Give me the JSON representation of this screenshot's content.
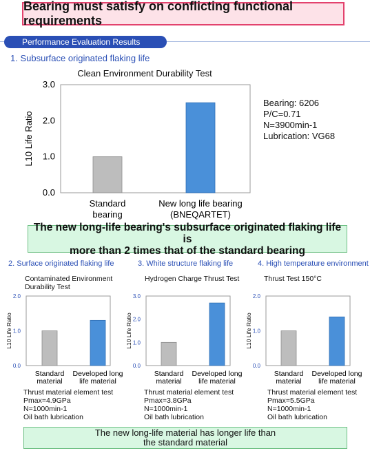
{
  "header": {
    "banner": "Bearing must satisfy on conflicting functional requirements",
    "section_pill": "Performance Evaluation Results"
  },
  "section1": {
    "heading": "1. Subsurface originated flaking life",
    "specs": [
      "Bearing: 6206",
      "P/C=0.71",
      "N=3900min-1",
      "Lubrication: VG68"
    ],
    "callout": [
      "The new long-life bearing's subsurface originated flaking life is",
      "more than 2 times that of the standard bearing"
    ]
  },
  "subsections": [
    {
      "heading": "2. Surface originated flaking life",
      "title": [
        "Contaminated Environment",
        "Durability Test"
      ],
      "notes": [
        "Thrust material element test",
        "Pmax=4.9GPa",
        "N=1000min-1",
        "Oil bath lubrication"
      ]
    },
    {
      "heading": "3. White structure flaking life",
      "title": [
        "Hydrogen Charge Thrust Test"
      ],
      "notes": [
        "Thrust material element test",
        "Pmax=3.8GPa",
        "N=1000min-1",
        "Oil bath lubrication"
      ]
    },
    {
      "heading": "4. High temperature environment fl",
      "title": [
        "Thrust Test 150°C"
      ],
      "notes": [
        "Thrust material element test",
        "Pmax=5.5GPa",
        "N=1000min-1",
        "Oil bath lubrication"
      ]
    }
  ],
  "footer_callout": [
    "The new long-life material has longer life than",
    "the standard material"
  ],
  "colors": {
    "standard_bar": "#bdbdbd",
    "new_bar": "#4a90d9",
    "banner_border": "#e3426d",
    "pill": "#2a4fb5",
    "callout_bg": "#d8f7e2"
  },
  "chart_data": [
    {
      "type": "bar",
      "title": "Clean Environment Durability Test",
      "ylabel": "L10 Life Ratio",
      "categories": [
        [
          "Standard",
          "bearing"
        ],
        [
          "New long life bearing",
          "(BNEQARTET)"
        ]
      ],
      "values": [
        1.0,
        2.5
      ],
      "ylim": [
        0,
        3
      ],
      "yticks": [
        "0.0",
        "1.0",
        "2.0",
        "3.0"
      ]
    },
    {
      "type": "bar",
      "title": "Contaminated Environment Durability Test",
      "ylabel": "L10 Life Ratio",
      "categories": [
        [
          "Standard",
          "material"
        ],
        [
          "Developed long",
          "life material"
        ]
      ],
      "values": [
        1.0,
        1.3
      ],
      "ylim": [
        0,
        2
      ],
      "yticks": [
        "0.0",
        "1.0",
        "2.0"
      ]
    },
    {
      "type": "bar",
      "title": "Hydrogen Charge Thrust Test",
      "ylabel": "L10 Life Ratio",
      "categories": [
        [
          "Standard",
          "material"
        ],
        [
          "Developed long",
          "life material"
        ]
      ],
      "values": [
        1.0,
        2.7
      ],
      "ylim": [
        0,
        3
      ],
      "yticks": [
        "0.0",
        "1.0",
        "2.0",
        "3.0"
      ]
    },
    {
      "type": "bar",
      "title": "Thrust Test 150°C",
      "ylabel": "L10 Life Ratio",
      "categories": [
        [
          "Standard",
          "material"
        ],
        [
          "Developed long",
          "life material"
        ]
      ],
      "values": [
        1.0,
        1.4
      ],
      "ylim": [
        0,
        2
      ],
      "yticks": [
        "0.0",
        "1.0",
        "2.0"
      ]
    }
  ]
}
